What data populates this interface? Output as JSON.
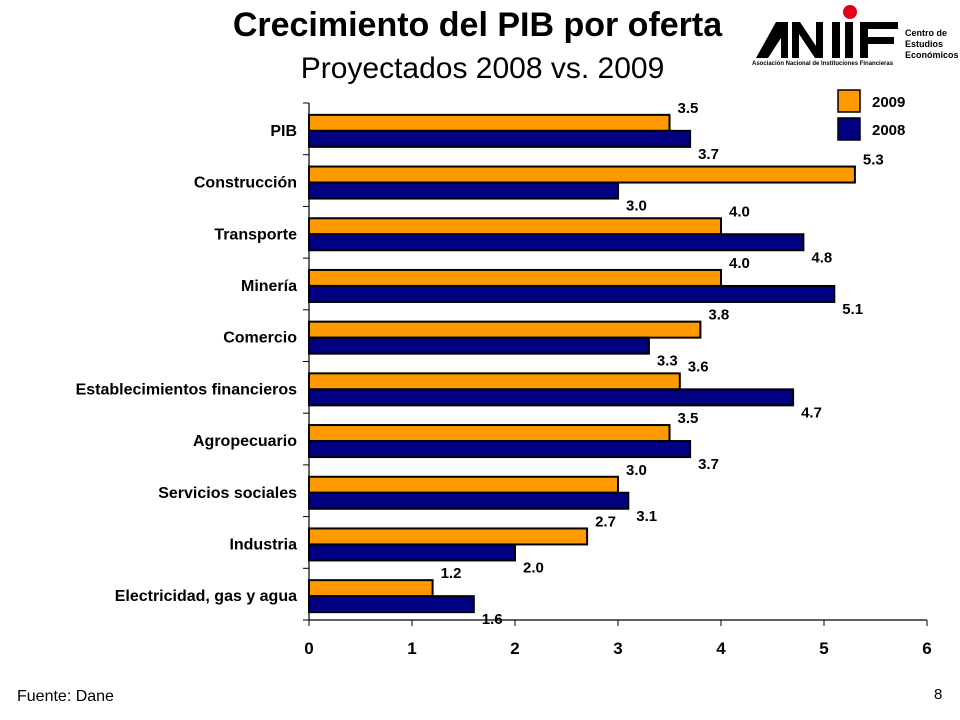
{
  "header": {
    "title": "Crecimiento del PIB por oferta",
    "subtitle": "Proyectados 2008 vs. 2009"
  },
  "logo": {
    "wordmark": "ANIF",
    "side_text": [
      "Centro de",
      "Estudios",
      "Económicos"
    ],
    "subtitle": "Asociación Nacional de Instituciones Financieras",
    "colors": {
      "dot": "#e3001b",
      "mark": "#000000"
    }
  },
  "chart_data": {
    "type": "bar",
    "orientation": "horizontal",
    "categories": [
      "PIB",
      "Construcción",
      "Transporte",
      "Minería",
      "Comercio",
      "Establecimientos financieros",
      "Agropecuario",
      "Servicios sociales",
      "Industria",
      "Electricidad, gas y agua"
    ],
    "series": [
      {
        "name": "2009",
        "color": "#ff9900",
        "values": [
          3.5,
          5.3,
          4.0,
          4.0,
          3.8,
          3.6,
          3.5,
          3.0,
          2.7,
          1.2
        ]
      },
      {
        "name": "2008",
        "color": "#000080",
        "values": [
          3.7,
          3.0,
          4.8,
          5.1,
          3.3,
          4.7,
          3.7,
          3.1,
          2.0,
          1.6
        ]
      }
    ],
    "xlim": [
      0,
      6
    ],
    "xticks": [
      "0",
      "1",
      "2",
      "3",
      "4",
      "5",
      "6"
    ],
    "grid": false,
    "legend_position": "top-right",
    "data_labels": true
  },
  "footer": {
    "source": "Fuente: Dane",
    "page_number": "8"
  }
}
